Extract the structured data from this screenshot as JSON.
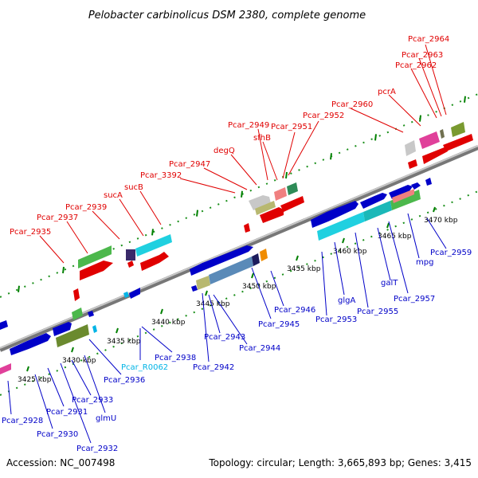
{
  "title": "Pelobacter carbinolicus DSM 2380, complete genome",
  "footer": {
    "accession": "Accession: NC_007498",
    "topology": "Topology: circular; Length: 3,665,893 bp; Genes: 3,415"
  },
  "ticks": [
    "3425 kbp",
    "3430 kbp",
    "3435 kbp",
    "3440 kbp",
    "3445 kbp",
    "3450 kbp",
    "3455 kbp",
    "3460 kbp",
    "3465 kbp",
    "3470 kbp"
  ],
  "labels": {
    "top": [
      "Pcar_2935",
      "Pcar_2937",
      "Pcar_2939",
      "sucA",
      "sucB",
      "Pcar_3392",
      "Pcar_2947",
      "degQ",
      "Pcar_2949",
      "sfhB",
      "Pcar_2951",
      "Pcar_2952",
      "Pcar_2960",
      "pcrA",
      "Pcar_2962",
      "Pcar_2963",
      "Pcar_2964"
    ],
    "bottom": [
      "Pcar_2928",
      "Pcar_2930",
      "Pcar_2931",
      "Pcar_2932",
      "Pcar_2933",
      "glmU",
      "Pcar_2936",
      "Pcar_R0062",
      "Pcar_2938",
      "Pcar_2942",
      "Pcar_2943",
      "Pcar_2944",
      "Pcar_2945",
      "Pcar_2946",
      "Pcar_2953",
      "glgA",
      "Pcar_2955",
      "galT",
      "Pcar_2957",
      "mpg",
      "Pcar_2959"
    ]
  },
  "colors": {
    "forward": "#e00000",
    "reverse": "#0000c8",
    "trna": "#00b4e6",
    "backbone": "#888888",
    "tick": "#008000"
  }
}
